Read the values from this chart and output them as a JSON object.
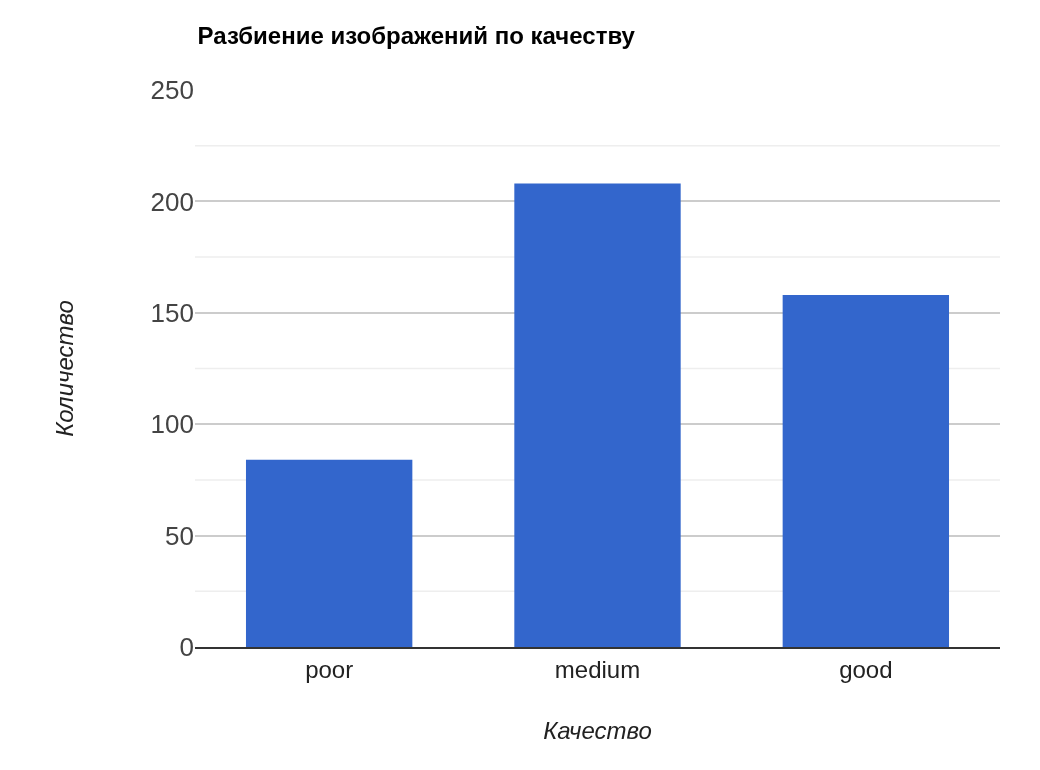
{
  "chart_data": {
    "type": "bar",
    "title": "Разбиение изображений по качеству",
    "xlabel": "Качество",
    "ylabel": "Количество",
    "categories": [
      "poor",
      "medium",
      "good"
    ],
    "values": [
      84,
      208,
      158
    ],
    "color": "#3366cc",
    "ylim": [
      0,
      250
    ],
    "yticks": [
      0,
      {
        "value": 25,
        "label": null
      },
      50,
      {
        "value": 75,
        "label": null
      },
      100,
      {
        "value": 125,
        "label": null
      },
      150,
      {
        "value": 175,
        "label": null
      },
      200,
      {
        "value": 225,
        "label": null
      },
      250
    ],
    "grid": "y",
    "legend": false
  }
}
